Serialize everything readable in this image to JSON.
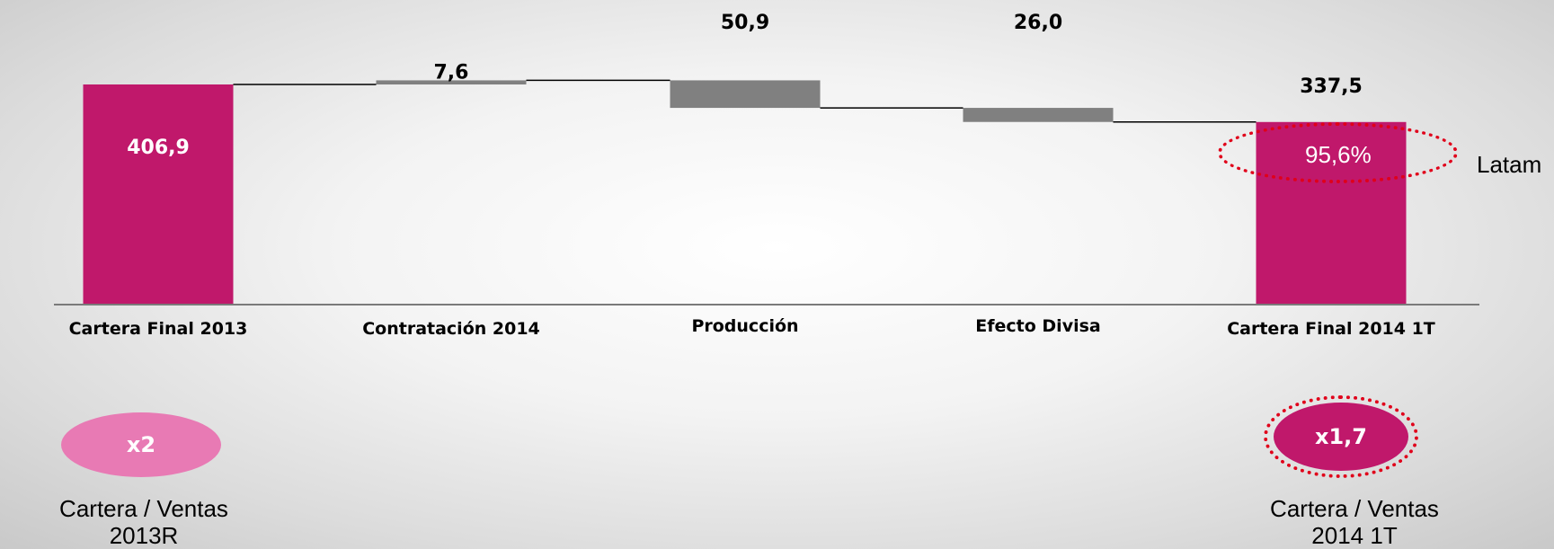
{
  "chart_data": {
    "type": "bar",
    "subtype": "waterfall",
    "categories": [
      "Cartera Final 2013",
      "Contratación 2014",
      "Producción",
      "Efecto Divisa",
      "Cartera Final  2014 1T"
    ],
    "values": [
      406.9,
      7.6,
      -50.9,
      -26.0,
      337.5
    ],
    "value_labels": [
      "406,9",
      "7,6",
      "50,9",
      "26,0",
      "337,5"
    ],
    "colors": {
      "total": "#c0186b",
      "delta": "#808080"
    }
  },
  "annotations": {
    "latam_share": "95,6%",
    "latam_label": "Latam"
  },
  "ratios": [
    {
      "value": "x2",
      "caption_line1": "Cartera / Ventas",
      "caption_line2": "2013R",
      "color": "#e87ab4"
    },
    {
      "value": "x1,7",
      "caption_line1": "Cartera / Ventas",
      "caption_line2": "2014 1T",
      "color": "#c0186b"
    }
  ]
}
